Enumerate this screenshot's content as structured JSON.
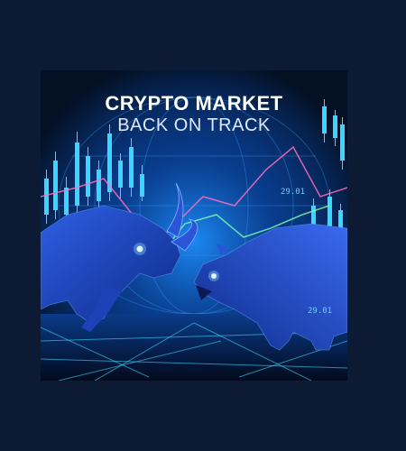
{
  "headline": {
    "line1": "CRYPTO MARKET",
    "line2": "BACK ON TRACK"
  },
  "price_tags": [
    "29.01",
    "29.01"
  ],
  "colors": {
    "page_background": "#0d1a33",
    "art_background": "#041024",
    "glow_blue": "#1a7dff",
    "cyan": "#3ad6ff",
    "pink_line": "#ff6fc0",
    "green_line": "#7dffb0"
  },
  "subjects": [
    "bull",
    "bear"
  ]
}
